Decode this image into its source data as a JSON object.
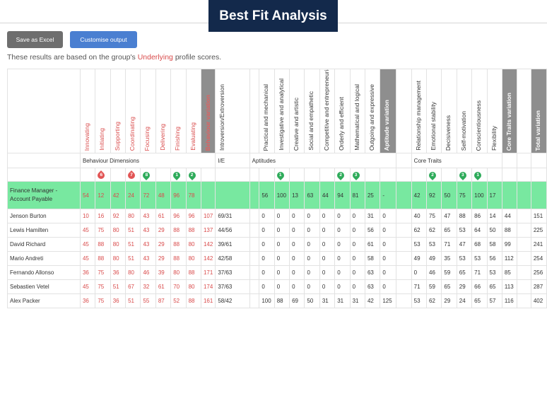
{
  "header": {
    "title": "Best Fit Analysis"
  },
  "toolbar": {
    "excel_label": "Save as Excel",
    "customise_label": "Customise output"
  },
  "info": {
    "prefix": "These results are based on the group's ",
    "highlight": "Underlying",
    "suffix": " profile scores."
  },
  "columns": {
    "behaviour": [
      "Innovating",
      "Initiating",
      "Supporting",
      "Coordinating",
      "Focusing",
      "Delivering",
      "Finishing",
      "Evaluating"
    ],
    "behaviour_variation": "Behaviour variation",
    "ie": "Introversion/Extroversion",
    "aptitudes": [
      "Practical and mechanical",
      "Investigative and analytical",
      "Creative and artistic",
      "Social and empathetic",
      "Competitive and entrepreneurial",
      "Orderly and efficient",
      "Mathematical and logical",
      "Outgoing and expressive"
    ],
    "aptitude_variation": "Aptitude variation",
    "traits": [
      "Relationship management",
      "Emotional stability",
      "Decisiveness",
      "Self-motivation",
      "Conscientiousness",
      "Flexibility"
    ],
    "traits_variation": "Core Traits variation",
    "total_variation": "Total variation"
  },
  "groups": {
    "behaviour": "Behaviour Dimensions",
    "ie": "I/E",
    "aptitudes": "Aptitudes",
    "traits": "Core Traits"
  },
  "markers": {
    "behaviour": [
      "",
      "6",
      "",
      "7",
      "8",
      "",
      "1",
      "2"
    ],
    "aptitudes": [
      "",
      "1",
      "",
      "",
      "",
      "2",
      "3",
      ""
    ],
    "traits": [
      "",
      "2",
      "",
      "3",
      "1",
      ""
    ]
  },
  "colors": {
    "banner": "#13294b",
    "target_row": "#78e8a0",
    "accent_red": "#d94b4b",
    "variation_header": "#8e8e8e"
  },
  "target": {
    "name_line1": "Finance Manager -",
    "name_line2": "Account Payable",
    "behaviour": [
      "54",
      "12",
      "42",
      "24",
      "72",
      "48",
      "96",
      "78"
    ],
    "behaviour_variation": "",
    "ie": "",
    "aptitudes": [
      "56",
      "100",
      "13",
      "63",
      "44",
      "94",
      "81",
      "25"
    ],
    "aptitude_variation": "-",
    "traits": [
      "42",
      "92",
      "50",
      "75",
      "100",
      "17"
    ],
    "traits_variation": "",
    "total_variation": ""
  },
  "rows": [
    {
      "name": "Jenson Burton",
      "behaviour": [
        "10",
        "16",
        "92",
        "80",
        "43",
        "61",
        "96",
        "96"
      ],
      "behaviour_variation": "107",
      "ie": "69/31",
      "aptitudes": [
        "0",
        "0",
        "0",
        "0",
        "0",
        "0",
        "0",
        "31"
      ],
      "aptitude_variation": "0",
      "traits": [
        "40",
        "75",
        "47",
        "88",
        "86",
        "14"
      ],
      "traits_variation": "44",
      "total_variation": "151"
    },
    {
      "name": "Lewis Hamilten",
      "behaviour": [
        "45",
        "75",
        "80",
        "51",
        "43",
        "29",
        "88",
        "88"
      ],
      "behaviour_variation": "137",
      "ie": "44/56",
      "aptitudes": [
        "0",
        "0",
        "0",
        "0",
        "0",
        "0",
        "0",
        "56"
      ],
      "aptitude_variation": "0",
      "traits": [
        "62",
        "62",
        "65",
        "53",
        "64",
        "50"
      ],
      "traits_variation": "88",
      "total_variation": "225"
    },
    {
      "name": "David Richard",
      "behaviour": [
        "45",
        "88",
        "80",
        "51",
        "43",
        "29",
        "88",
        "80"
      ],
      "behaviour_variation": "142",
      "ie": "39/61",
      "aptitudes": [
        "0",
        "0",
        "0",
        "0",
        "0",
        "0",
        "0",
        "61"
      ],
      "aptitude_variation": "0",
      "traits": [
        "53",
        "53",
        "71",
        "47",
        "68",
        "58"
      ],
      "traits_variation": "99",
      "total_variation": "241"
    },
    {
      "name": "Mario Andreti",
      "behaviour": [
        "45",
        "88",
        "80",
        "51",
        "43",
        "29",
        "88",
        "80"
      ],
      "behaviour_variation": "142",
      "ie": "42/58",
      "aptitudes": [
        "0",
        "0",
        "0",
        "0",
        "0",
        "0",
        "0",
        "58"
      ],
      "aptitude_variation": "0",
      "traits": [
        "49",
        "49",
        "35",
        "53",
        "53",
        "56"
      ],
      "traits_variation": "112",
      "total_variation": "254"
    },
    {
      "name": "Fernando Allonso",
      "behaviour": [
        "36",
        "75",
        "36",
        "80",
        "46",
        "39",
        "80",
        "88"
      ],
      "behaviour_variation": "171",
      "ie": "37/63",
      "aptitudes": [
        "0",
        "0",
        "0",
        "0",
        "0",
        "0",
        "0",
        "63"
      ],
      "aptitude_variation": "0",
      "traits": [
        "0",
        "46",
        "59",
        "65",
        "71",
        "53"
      ],
      "traits_variation": "85",
      "total_variation": "256"
    },
    {
      "name": "Sebastien Vetel",
      "behaviour": [
        "45",
        "75",
        "51",
        "67",
        "32",
        "61",
        "70",
        "80"
      ],
      "behaviour_variation": "174",
      "ie": "37/63",
      "aptitudes": [
        "0",
        "0",
        "0",
        "0",
        "0",
        "0",
        "0",
        "63"
      ],
      "aptitude_variation": "0",
      "traits": [
        "71",
        "59",
        "65",
        "29",
        "66",
        "65"
      ],
      "traits_variation": "113",
      "total_variation": "287"
    },
    {
      "name": "Alex Packer",
      "behaviour": [
        "36",
        "75",
        "36",
        "51",
        "55",
        "87",
        "52",
        "88"
      ],
      "behaviour_variation": "161",
      "ie": "58/42",
      "aptitudes": [
        "100",
        "88",
        "69",
        "50",
        "31",
        "31",
        "31",
        "42"
      ],
      "aptitude_variation": "125",
      "traits": [
        "53",
        "62",
        "29",
        "24",
        "65",
        "57"
      ],
      "traits_variation": "116",
      "total_variation": "402"
    }
  ]
}
